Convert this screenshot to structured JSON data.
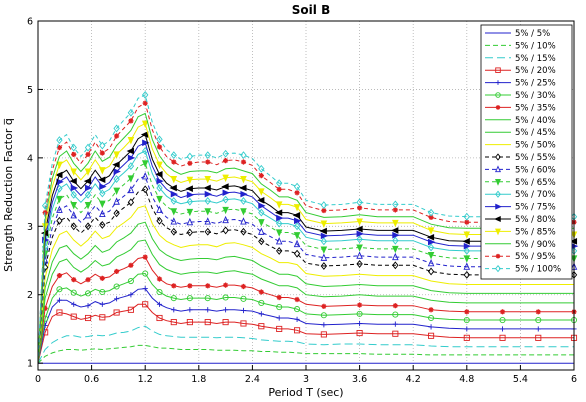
{
  "chart_data": {
    "type": "line",
    "title": "Soil B",
    "xlabel": "Period T (sec)",
    "ylabel": "Strength Reduction Factor q̅",
    "xlim": [
      0,
      6
    ],
    "ylim": [
      0.9,
      6
    ],
    "xticks": [
      "0",
      "0.6",
      "1.2",
      "1.8",
      "2.4",
      "3",
      "3.6",
      "4.2",
      "4.8",
      "5.4",
      "6"
    ],
    "yticks": [
      "1",
      "2",
      "3",
      "4",
      "5",
      "6"
    ],
    "grid": true,
    "legend_position": "top-right",
    "x": [
      0,
      0.08,
      0.16,
      0.24,
      0.32,
      0.4,
      0.48,
      0.56,
      0.64,
      0.72,
      0.8,
      0.88,
      0.96,
      1.04,
      1.12,
      1.2,
      1.28,
      1.36,
      1.44,
      1.52,
      1.6,
      1.7,
      1.8,
      1.9,
      2.0,
      2.1,
      2.2,
      2.3,
      2.4,
      2.5,
      2.6,
      2.7,
      2.8,
      2.9,
      3.0,
      3.2,
      3.4,
      3.6,
      3.8,
      4.0,
      4.2,
      4.4,
      4.6,
      4.8,
      5.0,
      5.2,
      5.4,
      5.6,
      5.8,
      6.0
    ],
    "series": [
      {
        "name": "5% / 5%",
        "color": "#2222cc",
        "dash": "",
        "marker": "none",
        "values": [
          1.0,
          1.0,
          1.0,
          1.0,
          1.0,
          1.0,
          1.0,
          1.0,
          1.0,
          1.0,
          1.0,
          1.0,
          1.0,
          1.0,
          1.0,
          1.0,
          1.0,
          1.0,
          1.0,
          1.0,
          1.0,
          1.0,
          1.0,
          1.0,
          1.0,
          1.0,
          1.0,
          1.0,
          1.0,
          1.0,
          1.0,
          1.0,
          1.0,
          1.0,
          1.0,
          1.0,
          1.0,
          1.0,
          1.0,
          1.0,
          1.0,
          1.0,
          1.0,
          1.0,
          1.0,
          1.0,
          1.0,
          1.0,
          1.0,
          1.0
        ]
      },
      {
        "name": "5% / 10%",
        "color": "#33cc33",
        "dash": "5,3",
        "marker": "none",
        "values": [
          1.0,
          1.1,
          1.15,
          1.18,
          1.2,
          1.2,
          1.19,
          1.2,
          1.21,
          1.2,
          1.21,
          1.22,
          1.23,
          1.24,
          1.26,
          1.26,
          1.24,
          1.22,
          1.22,
          1.21,
          1.2,
          1.2,
          1.2,
          1.2,
          1.19,
          1.19,
          1.19,
          1.18,
          1.18,
          1.17,
          1.17,
          1.16,
          1.16,
          1.15,
          1.14,
          1.14,
          1.14,
          1.14,
          1.13,
          1.13,
          1.13,
          1.12,
          1.12,
          1.12,
          1.12,
          1.12,
          1.12,
          1.12,
          1.12,
          1.12
        ]
      },
      {
        "name": "5% / 15%",
        "color": "#33cccc",
        "dash": "8,4",
        "marker": "none",
        "values": [
          1.0,
          1.2,
          1.3,
          1.36,
          1.4,
          1.4,
          1.38,
          1.39,
          1.41,
          1.4,
          1.41,
          1.44,
          1.45,
          1.47,
          1.52,
          1.54,
          1.47,
          1.42,
          1.4,
          1.39,
          1.38,
          1.38,
          1.38,
          1.38,
          1.37,
          1.38,
          1.38,
          1.37,
          1.36,
          1.34,
          1.33,
          1.32,
          1.32,
          1.31,
          1.28,
          1.27,
          1.28,
          1.28,
          1.27,
          1.27,
          1.27,
          1.25,
          1.24,
          1.24,
          1.24,
          1.24,
          1.24,
          1.24,
          1.24,
          1.24
        ]
      },
      {
        "name": "5% / 20%",
        "color": "#dd2222",
        "dash": "",
        "marker": "square",
        "values": [
          1.0,
          1.45,
          1.68,
          1.74,
          1.72,
          1.68,
          1.64,
          1.66,
          1.7,
          1.67,
          1.68,
          1.74,
          1.76,
          1.78,
          1.86,
          1.86,
          1.74,
          1.66,
          1.62,
          1.6,
          1.58,
          1.6,
          1.6,
          1.6,
          1.58,
          1.6,
          1.6,
          1.58,
          1.57,
          1.54,
          1.52,
          1.5,
          1.5,
          1.48,
          1.43,
          1.42,
          1.43,
          1.44,
          1.43,
          1.43,
          1.43,
          1.4,
          1.38,
          1.37,
          1.37,
          1.37,
          1.37,
          1.37,
          1.37,
          1.37
        ]
      },
      {
        "name": "5% / 25%",
        "color": "#2222cc",
        "dash": "",
        "marker": "plus",
        "values": [
          1.0,
          1.55,
          1.82,
          1.92,
          1.92,
          1.86,
          1.82,
          1.84,
          1.9,
          1.86,
          1.88,
          1.94,
          1.97,
          2.0,
          2.08,
          2.09,
          1.95,
          1.86,
          1.81,
          1.78,
          1.76,
          1.78,
          1.78,
          1.78,
          1.76,
          1.78,
          1.78,
          1.77,
          1.76,
          1.72,
          1.69,
          1.66,
          1.66,
          1.64,
          1.58,
          1.56,
          1.57,
          1.58,
          1.57,
          1.57,
          1.57,
          1.53,
          1.51,
          1.5,
          1.5,
          1.5,
          1.5,
          1.5,
          1.5,
          1.5
        ]
      },
      {
        "name": "5% / 30%",
        "color": "#33cc33",
        "dash": "",
        "marker": "circle",
        "values": [
          1.0,
          1.65,
          1.95,
          2.08,
          2.1,
          2.03,
          1.98,
          2.02,
          2.08,
          2.04,
          2.06,
          2.12,
          2.16,
          2.2,
          2.3,
          2.31,
          2.15,
          2.04,
          1.98,
          1.95,
          1.93,
          1.95,
          1.95,
          1.95,
          1.93,
          1.96,
          1.96,
          1.94,
          1.93,
          1.88,
          1.85,
          1.82,
          1.82,
          1.79,
          1.72,
          1.7,
          1.71,
          1.72,
          1.71,
          1.71,
          1.71,
          1.66,
          1.64,
          1.63,
          1.63,
          1.63,
          1.63,
          1.63,
          1.63,
          1.63
        ]
      },
      {
        "name": "5% / 35%",
        "color": "#dd2222",
        "dash": "",
        "marker": "star",
        "values": [
          1.0,
          1.8,
          2.12,
          2.28,
          2.32,
          2.22,
          2.16,
          2.22,
          2.3,
          2.24,
          2.26,
          2.34,
          2.38,
          2.43,
          2.53,
          2.55,
          2.36,
          2.23,
          2.16,
          2.13,
          2.11,
          2.13,
          2.13,
          2.13,
          2.11,
          2.14,
          2.14,
          2.12,
          2.1,
          2.04,
          2.0,
          1.96,
          1.96,
          1.93,
          1.86,
          1.83,
          1.84,
          1.85,
          1.84,
          1.84,
          1.84,
          1.78,
          1.76,
          1.75,
          1.75,
          1.75,
          1.75,
          1.75,
          1.75,
          1.75
        ]
      },
      {
        "name": "5% / 40%",
        "color": "#33cc33",
        "dash": "",
        "marker": "none",
        "values": [
          1.0,
          1.95,
          2.3,
          2.48,
          2.52,
          2.4,
          2.33,
          2.4,
          2.5,
          2.42,
          2.45,
          2.55,
          2.6,
          2.66,
          2.78,
          2.8,
          2.59,
          2.44,
          2.37,
          2.33,
          2.3,
          2.32,
          2.33,
          2.33,
          2.31,
          2.34,
          2.35,
          2.32,
          2.3,
          2.23,
          2.18,
          2.13,
          2.13,
          2.1,
          2.0,
          1.97,
          1.98,
          2.0,
          1.98,
          1.98,
          1.98,
          1.92,
          1.89,
          1.88,
          1.88,
          1.88,
          1.88,
          1.88,
          1.88,
          1.88
        ]
      },
      {
        "name": "5% / 45%",
        "color": "#33cc33",
        "dash": "",
        "marker": "none",
        "values": [
          1.0,
          2.1,
          2.48,
          2.68,
          2.72,
          2.6,
          2.52,
          2.6,
          2.72,
          2.62,
          2.66,
          2.77,
          2.83,
          2.9,
          3.03,
          3.06,
          2.82,
          2.66,
          2.58,
          2.53,
          2.5,
          2.52,
          2.53,
          2.53,
          2.51,
          2.55,
          2.56,
          2.53,
          2.5,
          2.42,
          2.36,
          2.3,
          2.3,
          2.27,
          2.16,
          2.12,
          2.13,
          2.15,
          2.13,
          2.13,
          2.13,
          2.06,
          2.03,
          2.02,
          2.02,
          2.02,
          2.02,
          2.02,
          2.02,
          2.02
        ]
      },
      {
        "name": "5% / 50%",
        "color": "#eeee00",
        "dash": "",
        "marker": "none",
        "values": [
          1.0,
          2.25,
          2.66,
          2.88,
          2.93,
          2.8,
          2.71,
          2.8,
          2.93,
          2.82,
          2.86,
          2.98,
          3.05,
          3.13,
          3.27,
          3.3,
          3.04,
          2.87,
          2.78,
          2.73,
          2.69,
          2.72,
          2.73,
          2.73,
          2.7,
          2.75,
          2.76,
          2.73,
          2.69,
          2.6,
          2.54,
          2.47,
          2.47,
          2.44,
          2.31,
          2.27,
          2.28,
          2.3,
          2.28,
          2.28,
          2.28,
          2.2,
          2.16,
          2.15,
          2.15,
          2.15,
          2.15,
          2.15,
          2.15,
          2.15
        ]
      },
      {
        "name": "5% / 55%",
        "color": "#000000",
        "dash": "4,3",
        "marker": "diamond",
        "values": [
          1.0,
          2.4,
          2.84,
          3.08,
          3.13,
          3.0,
          2.9,
          3.0,
          3.13,
          3.02,
          3.06,
          3.19,
          3.27,
          3.35,
          3.5,
          3.54,
          3.26,
          3.08,
          2.98,
          2.92,
          2.88,
          2.91,
          2.92,
          2.92,
          2.89,
          2.94,
          2.95,
          2.92,
          2.88,
          2.78,
          2.71,
          2.64,
          2.64,
          2.6,
          2.46,
          2.42,
          2.43,
          2.45,
          2.43,
          2.43,
          2.43,
          2.34,
          2.3,
          2.29,
          2.29,
          2.29,
          2.29,
          2.29,
          2.29,
          2.29
        ]
      },
      {
        "name": "5% / 60%",
        "color": "#2222cc",
        "dash": "4,3",
        "marker": "triangle",
        "values": [
          1.0,
          2.5,
          2.98,
          3.24,
          3.3,
          3.16,
          3.06,
          3.16,
          3.3,
          3.18,
          3.22,
          3.36,
          3.44,
          3.53,
          3.69,
          3.73,
          3.43,
          3.24,
          3.13,
          3.07,
          3.03,
          3.06,
          3.07,
          3.07,
          3.04,
          3.09,
          3.1,
          3.07,
          3.03,
          2.92,
          2.85,
          2.78,
          2.78,
          2.74,
          2.59,
          2.54,
          2.55,
          2.57,
          2.55,
          2.55,
          2.55,
          2.46,
          2.42,
          2.41,
          2.41,
          2.41,
          2.41,
          2.41,
          2.41,
          2.41
        ]
      },
      {
        "name": "5% / 65%",
        "color": "#33cc33",
        "dash": "4,3",
        "marker": "tri-down",
        "values": [
          1.0,
          2.6,
          3.12,
          3.4,
          3.46,
          3.31,
          3.2,
          3.31,
          3.46,
          3.33,
          3.38,
          3.52,
          3.61,
          3.7,
          3.87,
          3.92,
          3.6,
          3.4,
          3.29,
          3.22,
          3.18,
          3.21,
          3.22,
          3.22,
          3.19,
          3.24,
          3.25,
          3.22,
          3.18,
          3.06,
          2.99,
          2.91,
          2.91,
          2.87,
          2.72,
          2.66,
          2.67,
          2.69,
          2.67,
          2.67,
          2.67,
          2.58,
          2.54,
          2.53,
          2.53,
          2.53,
          2.53,
          2.53,
          2.53,
          2.53
        ]
      },
      {
        "name": "5% / 70%",
        "color": "#33cccc",
        "dash": "",
        "marker": "diamond",
        "values": [
          1.0,
          2.7,
          3.25,
          3.55,
          3.62,
          3.46,
          3.35,
          3.46,
          3.62,
          3.48,
          3.54,
          3.69,
          3.78,
          3.88,
          4.05,
          4.1,
          3.77,
          3.56,
          3.44,
          3.37,
          3.33,
          3.36,
          3.37,
          3.37,
          3.34,
          3.39,
          3.4,
          3.37,
          3.33,
          3.2,
          3.12,
          3.04,
          3.04,
          3.0,
          2.84,
          2.78,
          2.79,
          2.81,
          2.79,
          2.79,
          2.79,
          2.69,
          2.65,
          2.64,
          2.64,
          2.64,
          2.64,
          2.64,
          2.64,
          2.64
        ]
      },
      {
        "name": "5% / 75%",
        "color": "#2222cc",
        "dash": "",
        "marker": "tri-right",
        "values": [
          1.0,
          2.8,
          3.35,
          3.65,
          3.72,
          3.56,
          3.45,
          3.56,
          3.72,
          3.58,
          3.64,
          3.8,
          3.9,
          4.0,
          4.17,
          4.22,
          3.88,
          3.66,
          3.54,
          3.47,
          3.42,
          3.46,
          3.47,
          3.47,
          3.44,
          3.49,
          3.5,
          3.47,
          3.43,
          3.3,
          3.21,
          3.12,
          3.12,
          3.08,
          2.92,
          2.86,
          2.87,
          2.89,
          2.87,
          2.87,
          2.87,
          2.77,
          2.72,
          2.71,
          2.71,
          2.71,
          2.71,
          2.71,
          2.71,
          2.71
        ]
      },
      {
        "name": "5% / 80%",
        "color": "#000000",
        "dash": "",
        "marker": "tri-left",
        "values": [
          1.0,
          2.9,
          3.45,
          3.75,
          3.82,
          3.66,
          3.55,
          3.66,
          3.82,
          3.68,
          3.74,
          3.9,
          4.0,
          4.1,
          4.28,
          4.34,
          3.98,
          3.76,
          3.63,
          3.56,
          3.51,
          3.55,
          3.56,
          3.56,
          3.53,
          3.58,
          3.59,
          3.56,
          3.52,
          3.38,
          3.3,
          3.2,
          3.2,
          3.16,
          2.99,
          2.93,
          2.94,
          2.96,
          2.94,
          2.94,
          2.94,
          2.84,
          2.79,
          2.78,
          2.78,
          2.78,
          2.78,
          2.78,
          2.78,
          2.78
        ]
      },
      {
        "name": "5% / 85%",
        "color": "#eeee00",
        "dash": "",
        "marker": "tri-down",
        "values": [
          1.0,
          3.0,
          3.58,
          3.9,
          3.97,
          3.8,
          3.68,
          3.8,
          3.97,
          3.82,
          3.88,
          4.05,
          4.15,
          4.26,
          4.45,
          4.5,
          4.13,
          3.9,
          3.77,
          3.69,
          3.64,
          3.68,
          3.69,
          3.69,
          3.66,
          3.71,
          3.72,
          3.69,
          3.65,
          3.51,
          3.42,
          3.32,
          3.32,
          3.28,
          3.1,
          3.04,
          3.05,
          3.07,
          3.05,
          3.05,
          3.05,
          2.94,
          2.89,
          2.88,
          2.88,
          2.88,
          2.88,
          2.88,
          2.88,
          2.88
        ]
      },
      {
        "name": "5% / 90%",
        "color": "#33cc33",
        "dash": "",
        "marker": "none",
        "values": [
          1.0,
          3.1,
          3.7,
          4.02,
          4.1,
          3.92,
          3.8,
          3.92,
          4.1,
          3.95,
          4.01,
          4.18,
          4.29,
          4.4,
          4.6,
          4.65,
          4.27,
          4.03,
          3.89,
          3.81,
          3.76,
          3.8,
          3.81,
          3.81,
          3.78,
          3.84,
          3.85,
          3.81,
          3.77,
          3.62,
          3.53,
          3.43,
          3.43,
          3.38,
          3.2,
          3.13,
          3.14,
          3.17,
          3.14,
          3.14,
          3.14,
          3.03,
          2.98,
          2.97,
          2.97,
          2.97,
          2.97,
          2.97,
          2.97,
          2.97
        ]
      },
      {
        "name": "5% / 95%",
        "color": "#dd2222",
        "dash": "4,3",
        "marker": "star",
        "values": [
          1.0,
          3.2,
          3.82,
          4.15,
          4.23,
          4.05,
          3.92,
          4.05,
          4.23,
          4.07,
          4.14,
          4.32,
          4.43,
          4.54,
          4.74,
          4.8,
          4.41,
          4.16,
          4.02,
          3.94,
          3.88,
          3.92,
          3.94,
          3.94,
          3.9,
          3.96,
          3.97,
          3.94,
          3.89,
          3.74,
          3.64,
          3.54,
          3.54,
          3.49,
          3.3,
          3.23,
          3.24,
          3.27,
          3.24,
          3.24,
          3.24,
          3.13,
          3.07,
          3.06,
          3.06,
          3.06,
          3.06,
          3.06,
          3.06,
          3.06
        ]
      },
      {
        "name": "5% / 100%",
        "color": "#33cccc",
        "dash": "4,3",
        "marker": "diamond",
        "values": [
          1.0,
          3.3,
          3.92,
          4.26,
          4.34,
          4.15,
          4.02,
          4.15,
          4.34,
          4.18,
          4.25,
          4.43,
          4.55,
          4.66,
          4.87,
          4.92,
          4.52,
          4.27,
          4.12,
          4.04,
          3.98,
          4.02,
          4.04,
          4.04,
          4.0,
          4.06,
          4.07,
          4.04,
          3.99,
          3.84,
          3.74,
          3.63,
          3.63,
          3.58,
          3.38,
          3.31,
          3.32,
          3.35,
          3.32,
          3.32,
          3.32,
          3.2,
          3.15,
          3.14,
          3.14,
          3.14,
          3.14,
          3.14,
          3.14,
          3.14
        ]
      }
    ]
  }
}
